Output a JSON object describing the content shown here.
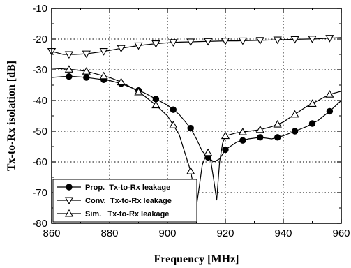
{
  "chart_data": {
    "type": "line",
    "xlabel": "Frequency [MHz]",
    "ylabel": "Tx-to-Rx isolation [dB]",
    "xlim": [
      860,
      960
    ],
    "ylim": [
      -80,
      -10
    ],
    "x_ticks": [
      860,
      880,
      900,
      920,
      940,
      960
    ],
    "y_ticks": [
      -80,
      -70,
      -60,
      -50,
      -40,
      -30,
      -20,
      -10
    ],
    "grid": "dotted",
    "legend_position": "bottom-left",
    "series": [
      {
        "name": "Prop.  Tx-to-Rx leakage",
        "marker": "filled-circle",
        "color": "#000000",
        "x": [
          860,
          864,
          868,
          872,
          876,
          880,
          884,
          888,
          892,
          896,
          900,
          904,
          908,
          910,
          912,
          914,
          916,
          918,
          920,
          924,
          928,
          932,
          936,
          940,
          944,
          948,
          952,
          956,
          960
        ],
        "y": [
          -32.5,
          -32.2,
          -32.2,
          -32.5,
          -33,
          -33.5,
          -34.5,
          -36,
          -37.5,
          -39.5,
          -41.5,
          -44.5,
          -49,
          -52.5,
          -56.5,
          -58.5,
          -60,
          -59,
          -56,
          -53.5,
          -52.5,
          -52,
          -52.5,
          -51.5,
          -50,
          -48.5,
          -46.5,
          -43.5,
          -40
        ]
      },
      {
        "name": "Conv.  Tx-to-Rx leakage",
        "marker": "open-triangle-down",
        "color": "#000000",
        "x": [
          860,
          864,
          868,
          872,
          876,
          880,
          884,
          888,
          892,
          896,
          900,
          904,
          908,
          912,
          916,
          920,
          924,
          928,
          932,
          936,
          940,
          944,
          948,
          952,
          956,
          960
        ],
        "y": [
          -24,
          -25,
          -25,
          -24.8,
          -24.3,
          -23.7,
          -23,
          -22.4,
          -21.9,
          -21.5,
          -21.2,
          -21,
          -20.9,
          -20.8,
          -20.7,
          -20.6,
          -20.6,
          -20.5,
          -20.4,
          -20.3,
          -20.2,
          -20.1,
          -20,
          -19.9,
          -19.7,
          -19.5
        ]
      },
      {
        "name": "Sim.   Tx-to-Rx leakage",
        "marker": "open-triangle-up",
        "color": "#000000",
        "x": [
          860,
          864,
          868,
          872,
          876,
          880,
          884,
          888,
          892,
          896,
          900,
          904,
          906,
          908,
          909,
          910,
          911,
          912,
          913,
          914,
          915,
          916,
          917,
          918,
          919,
          920,
          924,
          928,
          932,
          936,
          940,
          944,
          948,
          952,
          956,
          960
        ],
        "y": [
          -29.5,
          -29.7,
          -30,
          -30.5,
          -31.5,
          -32.5,
          -34,
          -36,
          -38.5,
          -41.5,
          -45,
          -51,
          -57,
          -63,
          -68,
          -74.5,
          -68,
          -61,
          -58.5,
          -57,
          -60,
          -66,
          -72.5,
          -60,
          -54,
          -51.5,
          -50.5,
          -50,
          -49.5,
          -48.5,
          -47,
          -44.5,
          -42,
          -40,
          -38,
          -37
        ]
      }
    ]
  }
}
